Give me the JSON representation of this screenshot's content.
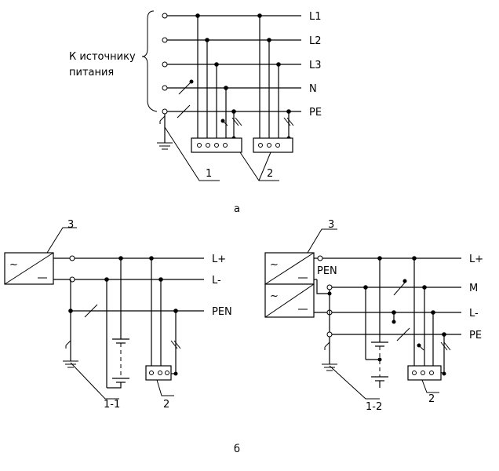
{
  "diagram_a": {
    "source_label_line1": "К источнику",
    "source_label_line2": "питания",
    "buses": [
      "L1",
      "L2",
      "L3",
      "N",
      "PE"
    ],
    "callouts": [
      "1",
      "2"
    ],
    "caption": "а"
  },
  "diagram_b": {
    "left": {
      "buses": [
        "L+",
        "L-",
        "PEN"
      ],
      "callouts": [
        "3",
        "1-1",
        "2"
      ]
    },
    "right": {
      "pen_label": "PEN",
      "buses": [
        "L+",
        "M",
        "L-",
        "PE"
      ],
      "callouts": [
        "3",
        "1-2",
        "2"
      ]
    },
    "caption": "б"
  }
}
